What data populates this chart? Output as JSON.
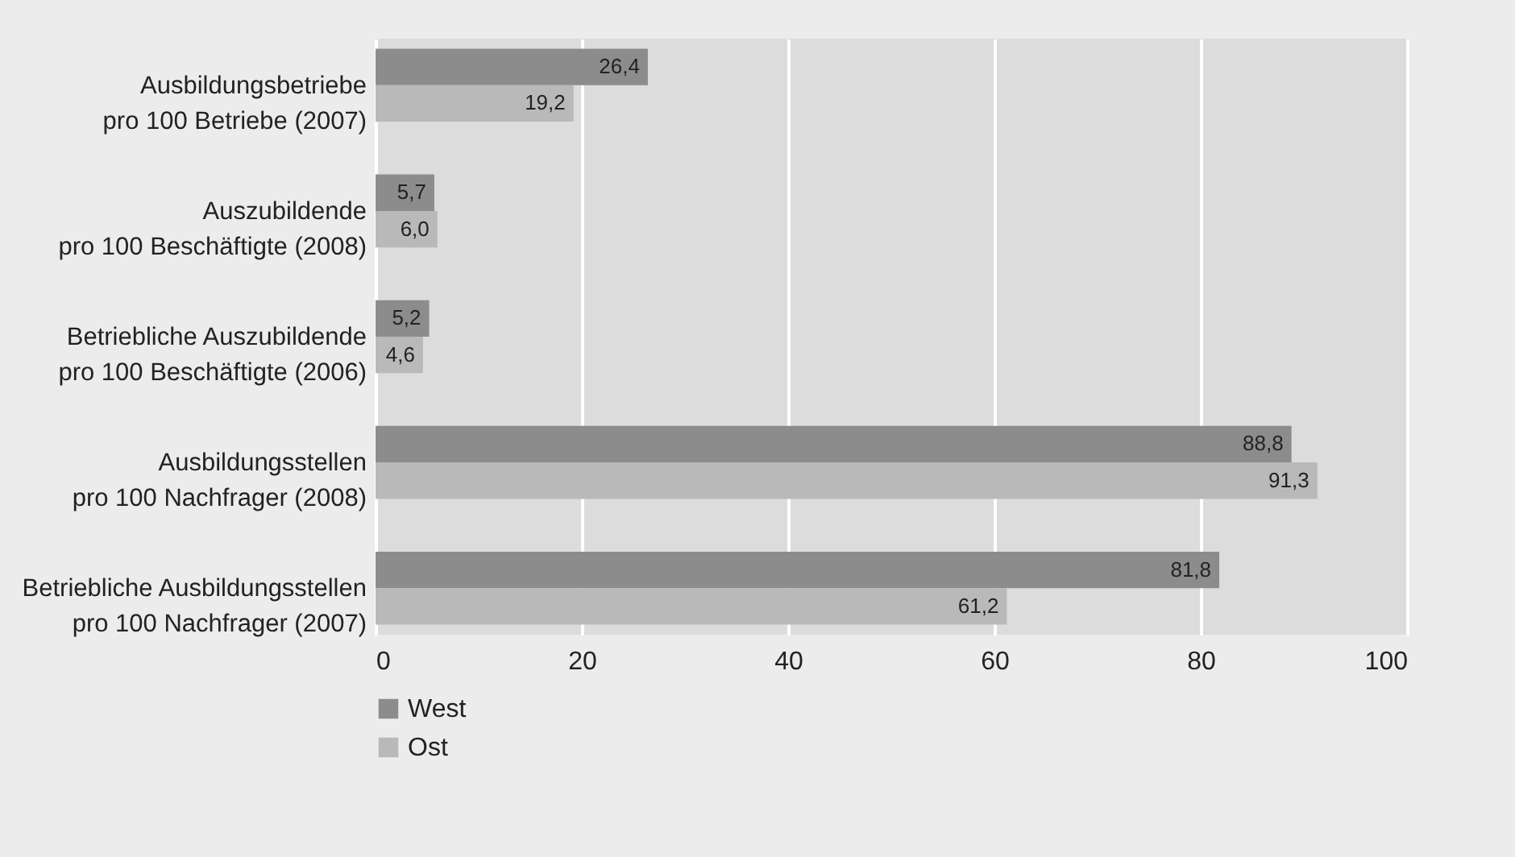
{
  "chart_data": {
    "type": "bar",
    "orientation": "horizontal",
    "categories": [
      "Ausbildungsbetriebe\npro 100 Betriebe (2007)",
      "Auszubildende\npro 100 Beschäftigte (2008)",
      "Betriebliche Auszubildende\npro 100 Beschäftigte (2006)",
      "Ausbildungsstellen\npro 100 Nachfrager (2008)",
      "Betriebliche Ausbildungsstellen\npro 100 Nachfrager (2007)"
    ],
    "series": [
      {
        "name": "West",
        "color": "#8c8c8c",
        "values": [
          26.4,
          5.7,
          5.2,
          88.8,
          81.8
        ]
      },
      {
        "name": "Ost",
        "color": "#b9b9b9",
        "values": [
          19.2,
          6.0,
          4.6,
          91.3,
          61.2
        ]
      }
    ],
    "value_labels": [
      [
        "26,4",
        "5,7",
        "5,2",
        "88,8",
        "81,8"
      ],
      [
        "19,2",
        "6,0",
        "4,6",
        "91,3",
        "61,2"
      ]
    ],
    "xlim": [
      0,
      100
    ],
    "xticks": [
      0,
      20,
      40,
      60,
      80,
      100
    ],
    "grid": "x",
    "legend": "bottom left"
  }
}
